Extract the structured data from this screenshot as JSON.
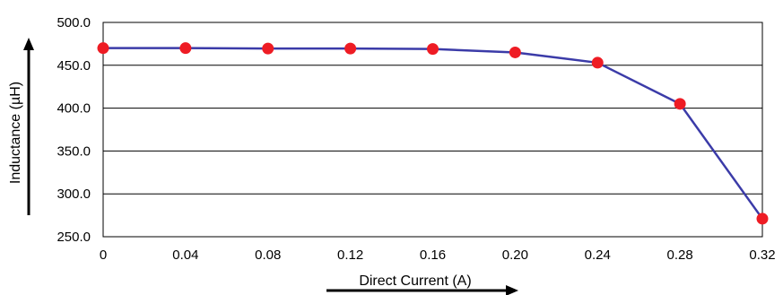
{
  "chart_data": {
    "type": "line",
    "title": "",
    "xlabel": "Direct Current (A)",
    "ylabel": "Inductance (µH)",
    "x": [
      "0",
      "0.04",
      "0.08",
      "0.12",
      "0.16",
      "0.20",
      "0.24",
      "0.28",
      "0.32"
    ],
    "x_values": [
      0,
      0.04,
      0.08,
      0.12,
      0.16,
      0.2,
      0.24,
      0.28,
      0.32
    ],
    "y_ticks": [
      "250.0",
      "300.0",
      "350.0",
      "400.0",
      "450.0",
      "500.0"
    ],
    "ylim": [
      250,
      500
    ],
    "xlim": [
      0,
      0.32
    ],
    "grid": "horizontal",
    "legend": "none",
    "series": [
      {
        "values": [
          470,
          470,
          469.5,
          469.5,
          469,
          465,
          453,
          405,
          271
        ]
      }
    ],
    "colors": {
      "line": "#3b3ba8",
      "marker": "#ee1c24",
      "grid": "#000000",
      "axis_arrow": "#000000"
    }
  }
}
